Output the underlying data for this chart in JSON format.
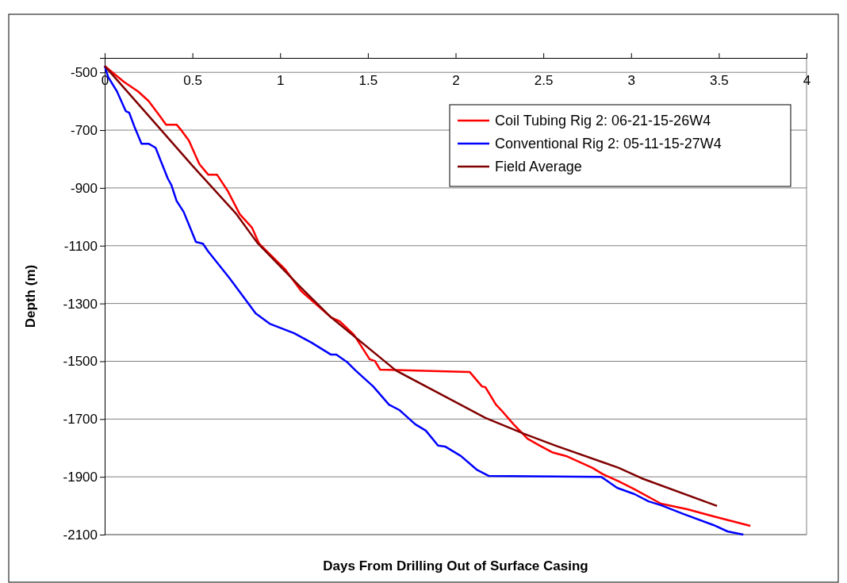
{
  "chart_data": {
    "type": "line",
    "xlabel": "Days From Drilling Out of Surface Casing",
    "ylabel": "Depth (m)",
    "xlim": [
      0,
      4
    ],
    "xticks": [
      0,
      0.5,
      1,
      1.5,
      2,
      2.5,
      3,
      3.5,
      4
    ],
    "ylim": [
      -2100,
      -450
    ],
    "yticks": [
      -500,
      -700,
      -900,
      -1100,
      -1300,
      -1500,
      -1700,
      -1900,
      -2100
    ],
    "grid": "y",
    "legend": "top right",
    "marker": "none",
    "line_style": "solid",
    "series": [
      {
        "name": "Coil Tubing Rig 2: 06-21-15-26W4",
        "color": "#ff0000",
        "x": [
          0,
          0.11,
          0.19,
          0.25,
          0.31,
          0.35,
          0.41,
          0.44,
          0.48,
          0.52,
          0.54,
          0.59,
          0.64,
          0.7,
          0.77,
          0.84,
          0.88,
          1.03,
          1.12,
          1.29,
          1.34,
          1.42,
          1.51,
          1.54,
          1.57,
          2.08,
          2.15,
          2.17,
          2.23,
          2.26,
          2.33,
          2.41,
          2.48,
          2.55,
          2.63,
          2.7,
          2.78,
          2.84,
          2.93,
          3.02,
          3.17,
          3.32,
          3.47,
          3.68
        ],
        "values": [
          -478,
          -533,
          -566,
          -599,
          -648,
          -681,
          -681,
          -703,
          -736,
          -791,
          -818,
          -854,
          -854,
          -909,
          -991,
          -1038,
          -1093,
          -1183,
          -1257,
          -1348,
          -1362,
          -1408,
          -1493,
          -1499,
          -1529,
          -1537,
          -1587,
          -1590,
          -1650,
          -1669,
          -1718,
          -1768,
          -1792,
          -1815,
          -1828,
          -1847,
          -1869,
          -1891,
          -1916,
          -1943,
          -1993,
          -2012,
          -2037,
          -2070
        ]
      },
      {
        "name": "Conventional Rig 2: 05-11-15-27W4",
        "color": "#0000ff",
        "x": [
          0,
          0.02,
          0.07,
          0.12,
          0.14,
          0.17,
          0.21,
          0.25,
          0.29,
          0.32,
          0.36,
          0.38,
          0.41,
          0.45,
          0.48,
          0.52,
          0.56,
          0.59,
          0.71,
          0.81,
          0.86,
          0.94,
          1.08,
          1.18,
          1.29,
          1.32,
          1.38,
          1.43,
          1.53,
          1.62,
          1.68,
          1.77,
          1.83,
          1.9,
          1.94,
          2.03,
          2.12,
          2.19,
          2.83,
          2.92,
          3.02,
          3.1,
          3.17,
          3.3,
          3.47,
          3.55,
          3.64
        ],
        "values": [
          -478,
          -516,
          -566,
          -634,
          -640,
          -689,
          -747,
          -747,
          -761,
          -807,
          -868,
          -890,
          -945,
          -983,
          -1027,
          -1087,
          -1093,
          -1120,
          -1211,
          -1293,
          -1334,
          -1370,
          -1403,
          -1436,
          -1477,
          -1477,
          -1502,
          -1532,
          -1587,
          -1650,
          -1669,
          -1718,
          -1740,
          -1792,
          -1795,
          -1828,
          -1875,
          -1897,
          -1900,
          -1938,
          -1960,
          -1985,
          -1998,
          -2029,
          -2067,
          -2089,
          -2100
        ]
      },
      {
        "name": "Field Average",
        "color": "#800000",
        "x": [
          0,
          0.25,
          0.5,
          0.75,
          0.87,
          1.12,
          1.29,
          1.66,
          2.17,
          2.39,
          2.57,
          2.93,
          3.06,
          3.49
        ],
        "values": [
          -478,
          -650,
          -823,
          -990,
          -1090,
          -1246,
          -1348,
          -1532,
          -1696,
          -1751,
          -1792,
          -1869,
          -1905,
          -2001
        ]
      }
    ]
  }
}
